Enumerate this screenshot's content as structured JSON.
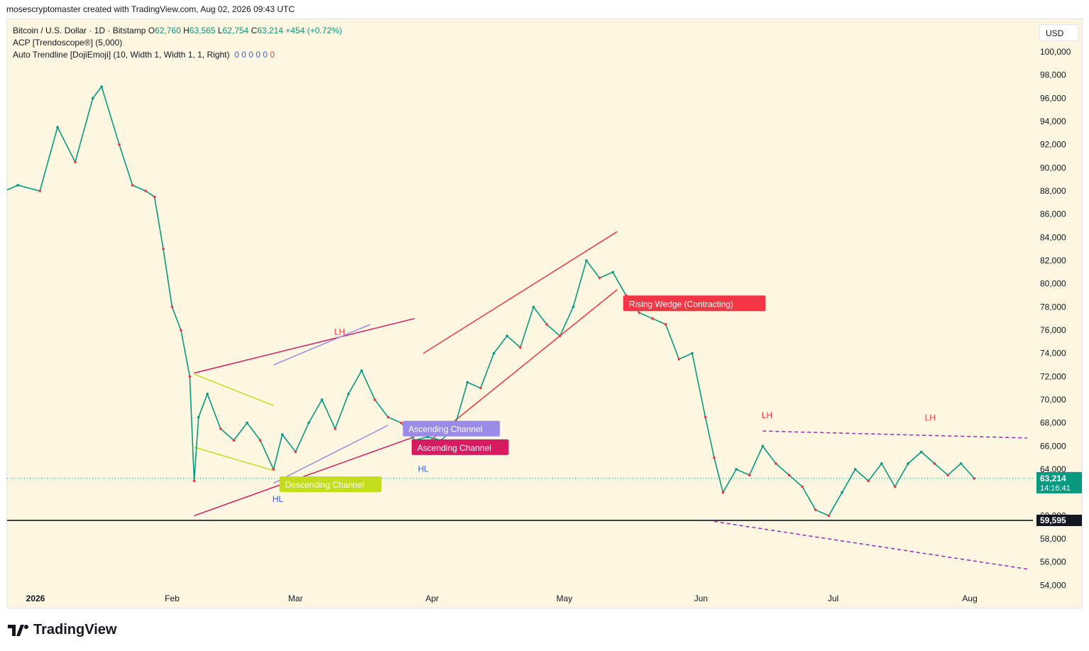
{
  "header": {
    "credit": "mosescryptomaster created with TradingView.com, Aug 02, 2026 09:43 UTC"
  },
  "legend": {
    "symbol": "Bitcoin / U.S. Dollar · 1D · Bitstamp",
    "o_label": "O",
    "o": "62,760",
    "h_label": "H",
    "h": "63,565",
    "l_label": "L",
    "l": "62,754",
    "c_label": "C",
    "c": "63,214",
    "change": "+454 (+0.72%)",
    "indicator1": "ACP [Trendoscope®] (5,000)",
    "indicator2": "Auto Trendline [DojiEmoji] (10, Width 1, Width 1, 1, Right)",
    "indicator2_values": [
      "0",
      "0",
      "0",
      "0",
      "0"
    ],
    "indicator2_last": "0"
  },
  "currency_button": "USD",
  "logo_text": "TradingView",
  "colors": {
    "up": "#089981",
    "down": "#f23645",
    "background": "#fdf7e1",
    "blue": "#2962ff"
  },
  "chart_data": {
    "type": "candlestick",
    "title": "Bitcoin / U.S. Dollar · 1D · Bitstamp",
    "y_ticks": [
      54000,
      56000,
      58000,
      60000,
      62000,
      64000,
      66000,
      68000,
      70000,
      72000,
      74000,
      76000,
      78000,
      80000,
      82000,
      84000,
      86000,
      88000,
      90000,
      92000,
      94000,
      96000,
      98000,
      100000
    ],
    "y_tick_labels": [
      "54,000",
      "56,000",
      "58,000",
      "60,000",
      "",
      "64,000",
      "66,000",
      "68,000",
      "70,000",
      "72,000",
      "74,000",
      "76,000",
      "78,000",
      "80,000",
      "82,000",
      "84,000",
      "86,000",
      "88,000",
      "90,000",
      "92,000",
      "94,000",
      "96,000",
      "98,000",
      "100,000"
    ],
    "x_labels": [
      {
        "label": "2026",
        "date": "2026-01-01"
      },
      {
        "label": "Feb",
        "date": "2026-02-01"
      },
      {
        "label": "Mar",
        "date": "2026-03-01"
      },
      {
        "label": "Apr",
        "date": "2026-04-01"
      },
      {
        "label": "May",
        "date": "2026-05-01"
      },
      {
        "label": "Jun",
        "date": "2026-06-01"
      },
      {
        "label": "Jul",
        "date": "2026-07-01"
      },
      {
        "label": "Aug",
        "date": "2026-08-01"
      }
    ],
    "last_price": {
      "value": 63214,
      "label": "63,214",
      "countdown": "14:16:41"
    },
    "support_line": {
      "value": 59595,
      "label": "59,595"
    },
    "path_points": [
      [
        "2025-12-22",
        87500
      ],
      [
        "2025-12-28",
        88500
      ],
      [
        "2026-01-02",
        88000
      ],
      [
        "2026-01-06",
        93500
      ],
      [
        "2026-01-10",
        90500
      ],
      [
        "2026-01-14",
        96000
      ],
      [
        "2026-01-16",
        97000
      ],
      [
        "2026-01-20",
        92000
      ],
      [
        "2026-01-23",
        88500
      ],
      [
        "2026-01-26",
        88000
      ],
      [
        "2026-01-28",
        87500
      ],
      [
        "2026-01-30",
        83000
      ],
      [
        "2026-02-01",
        78000
      ],
      [
        "2026-02-03",
        76000
      ],
      [
        "2026-02-05",
        72000
      ],
      [
        "2026-02-06",
        63000
      ],
      [
        "2026-02-07",
        68500
      ],
      [
        "2026-02-09",
        70500
      ],
      [
        "2026-02-12",
        67500
      ],
      [
        "2026-02-15",
        66500
      ],
      [
        "2026-02-18",
        68000
      ],
      [
        "2026-02-21",
        66500
      ],
      [
        "2026-02-24",
        64000
      ],
      [
        "2026-02-26",
        67000
      ],
      [
        "2026-03-01",
        65500
      ],
      [
        "2026-03-04",
        68000
      ],
      [
        "2026-03-07",
        70000
      ],
      [
        "2026-03-10",
        67500
      ],
      [
        "2026-03-13",
        70500
      ],
      [
        "2026-03-16",
        72500
      ],
      [
        "2026-03-19",
        70000
      ],
      [
        "2026-03-22",
        68500
      ],
      [
        "2026-03-25",
        68000
      ],
      [
        "2026-03-28",
        66500
      ],
      [
        "2026-03-31",
        66800
      ],
      [
        "2026-04-03",
        66500
      ],
      [
        "2026-04-06",
        67500
      ],
      [
        "2026-04-09",
        71500
      ],
      [
        "2026-04-12",
        71000
      ],
      [
        "2026-04-15",
        74000
      ],
      [
        "2026-04-18",
        75500
      ],
      [
        "2026-04-21",
        74500
      ],
      [
        "2026-04-24",
        78000
      ],
      [
        "2026-04-27",
        76500
      ],
      [
        "2026-04-30",
        75500
      ],
      [
        "2026-05-03",
        78000
      ],
      [
        "2026-05-06",
        82000
      ],
      [
        "2026-05-09",
        80500
      ],
      [
        "2026-05-12",
        81000
      ],
      [
        "2026-05-15",
        79000
      ],
      [
        "2026-05-18",
        77500
      ],
      [
        "2026-05-21",
        77000
      ],
      [
        "2026-05-24",
        76500
      ],
      [
        "2026-05-27",
        73500
      ],
      [
        "2026-05-30",
        74000
      ],
      [
        "2026-06-02",
        68500
      ],
      [
        "2026-06-04",
        65000
      ],
      [
        "2026-06-06",
        62000
      ],
      [
        "2026-06-09",
        64000
      ],
      [
        "2026-06-12",
        63500
      ],
      [
        "2026-06-15",
        66000
      ],
      [
        "2026-06-18",
        64500
      ],
      [
        "2026-06-21",
        63500
      ],
      [
        "2026-06-24",
        62500
      ],
      [
        "2026-06-27",
        60500
      ],
      [
        "2026-06-30",
        60000
      ],
      [
        "2026-07-03",
        62000
      ],
      [
        "2026-07-06",
        64000
      ],
      [
        "2026-07-09",
        63000
      ],
      [
        "2026-07-12",
        64500
      ],
      [
        "2026-07-15",
        62500
      ],
      [
        "2026-07-18",
        64500
      ],
      [
        "2026-07-21",
        65500
      ],
      [
        "2026-07-24",
        64500
      ],
      [
        "2026-07-27",
        63500
      ],
      [
        "2026-07-30",
        64500
      ],
      [
        "2026-08-02",
        63214
      ]
    ],
    "annotations": [
      {
        "text": "LH",
        "color": "#f23645",
        "date": "2026-03-11",
        "price": 75600
      },
      {
        "text": "HL",
        "color": "#2962ff",
        "date": "2026-02-25",
        "price": 61200
      },
      {
        "text": "HL",
        "color": "#2962ff",
        "date": "2026-03-30",
        "price": 63800
      },
      {
        "text": "LH",
        "color": "#f23645",
        "date": "2026-06-16",
        "price": 68400
      },
      {
        "text": "LH",
        "color": "#f23645",
        "date": "2026-07-23",
        "price": 68200
      }
    ],
    "pattern_labels": [
      {
        "text": "Descending Channel",
        "bg": "#c4dc1e",
        "color": "#ffffff",
        "date": "2026-02-26",
        "price": 62650
      },
      {
        "text": "Ascending Channel",
        "bg": "#9b8be8",
        "color": "#ffffff",
        "date": "2026-03-26",
        "price": 67450
      },
      {
        "text": "Ascending Channel",
        "bg": "#d81b60",
        "color": "#ffffff",
        "date": "2026-03-28",
        "price": 65850
      },
      {
        "text": "Rising Wedge (Contracting)",
        "bg": "#f23645",
        "color": "#ffffff",
        "date": "2026-05-15",
        "price": 78250
      }
    ]
  }
}
